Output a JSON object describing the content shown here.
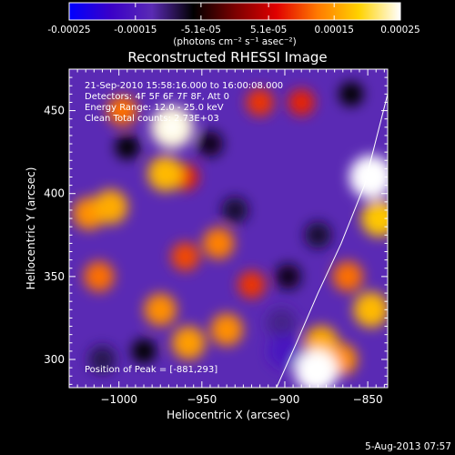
{
  "chart_data": {
    "type": "heatmap",
    "title": "Reconstructed RHESSI Image",
    "xlabel": "Heliocentric X (arcsec)",
    "ylabel": "Heliocentric Y (arcsec)",
    "xlim": [
      -1030,
      -838
    ],
    "ylim": [
      283,
      475
    ],
    "x_ticks": [
      -1000,
      -950,
      -900,
      -850
    ],
    "x_tick_labels": [
      "−1000",
      "−950",
      "−900",
      "−850"
    ],
    "y_ticks": [
      300,
      350,
      400,
      450
    ],
    "y_tick_labels": [
      "300",
      "350",
      "400",
      "450"
    ],
    "colorbar": {
      "range": [
        -0.00025,
        0.00025
      ],
      "ticks": [
        -0.00025,
        -0.00015,
        -5.1e-05,
        5.1e-05,
        0.00015,
        0.00025
      ],
      "tick_labels": [
        "-0.00025",
        "-0.00015",
        "-5.1e-05",
        "5.1e-05",
        "0.00015",
        "0.00025"
      ],
      "unit_label": "(photons cm⁻² s⁻¹ asec⁻²)",
      "colormap": [
        "#0000ff",
        "#3a00c8",
        "#5a2ab4",
        "#000000",
        "#7a0000",
        "#e00000",
        "#ff7a00",
        "#ffd200",
        "#ffffff"
      ]
    },
    "annotations": {
      "time": "21-Sep-2010 15:58:16.000 to 16:00:08.000",
      "detectors": "Detectors: 4F 5F 6F 7F 8F, Att 0",
      "energy": "Energy Range: 12.0 - 25.0 keV",
      "clean": "Clean    Total counts: 2.73E+03",
      "peak": "Position of Peak = [-881,293]"
    },
    "limb_curve": [
      [
        -905,
        283
      ],
      [
        -893,
        310
      ],
      [
        -880,
        340
      ],
      [
        -866,
        370
      ],
      [
        -852,
        405
      ],
      [
        -838,
        460
      ]
    ],
    "sources": [
      {
        "x": -968,
        "y": 440,
        "value": 0.00024
      },
      {
        "x": -972,
        "y": 412,
        "value": 0.00017
      },
      {
        "x": -998,
        "y": 450,
        "value": 0.00012
      },
      {
        "x": -1005,
        "y": 392,
        "value": 0.00016
      },
      {
        "x": -1018,
        "y": 388,
        "value": 0.00014
      },
      {
        "x": -1012,
        "y": 350,
        "value": 0.00012
      },
      {
        "x": -960,
        "y": 362,
        "value": 0.0001
      },
      {
        "x": -940,
        "y": 370,
        "value": 0.00013
      },
      {
        "x": -975,
        "y": 330,
        "value": 0.00014
      },
      {
        "x": -958,
        "y": 310,
        "value": 0.00015
      },
      {
        "x": -935,
        "y": 318,
        "value": 0.00014
      },
      {
        "x": -920,
        "y": 345,
        "value": 9e-05
      },
      {
        "x": -960,
        "y": 410,
        "value": 8e-05
      },
      {
        "x": -915,
        "y": 455,
        "value": 9e-05
      },
      {
        "x": -890,
        "y": 455,
        "value": 8e-05
      },
      {
        "x": -848,
        "y": 410,
        "value": 0.00025
      },
      {
        "x": -843,
        "y": 385,
        "value": 0.00018
      },
      {
        "x": -862,
        "y": 350,
        "value": 0.00012
      },
      {
        "x": -848,
        "y": 330,
        "value": 0.00017
      },
      {
        "x": -878,
        "y": 310,
        "value": 0.00016
      },
      {
        "x": -881,
        "y": 293,
        "value": 0.00025
      },
      {
        "x": -866,
        "y": 300,
        "value": 0.00014
      },
      {
        "x": -1010,
        "y": 300,
        "value": -9e-05
      },
      {
        "x": -995,
        "y": 428,
        "value": -6e-05
      },
      {
        "x": -900,
        "y": 305,
        "value": -0.00016
      },
      {
        "x": -902,
        "y": 322,
        "value": -0.00011
      },
      {
        "x": -898,
        "y": 350,
        "value": -7e-05
      },
      {
        "x": -945,
        "y": 430,
        "value": -7e-05
      },
      {
        "x": -880,
        "y": 375,
        "value": -8e-05
      },
      {
        "x": -860,
        "y": 460,
        "value": -6e-05
      },
      {
        "x": -930,
        "y": 390,
        "value": -8e-05
      },
      {
        "x": -985,
        "y": 305,
        "value": -6e-05
      }
    ]
  },
  "footer": {
    "date": "5-Aug-2013 07:57"
  }
}
